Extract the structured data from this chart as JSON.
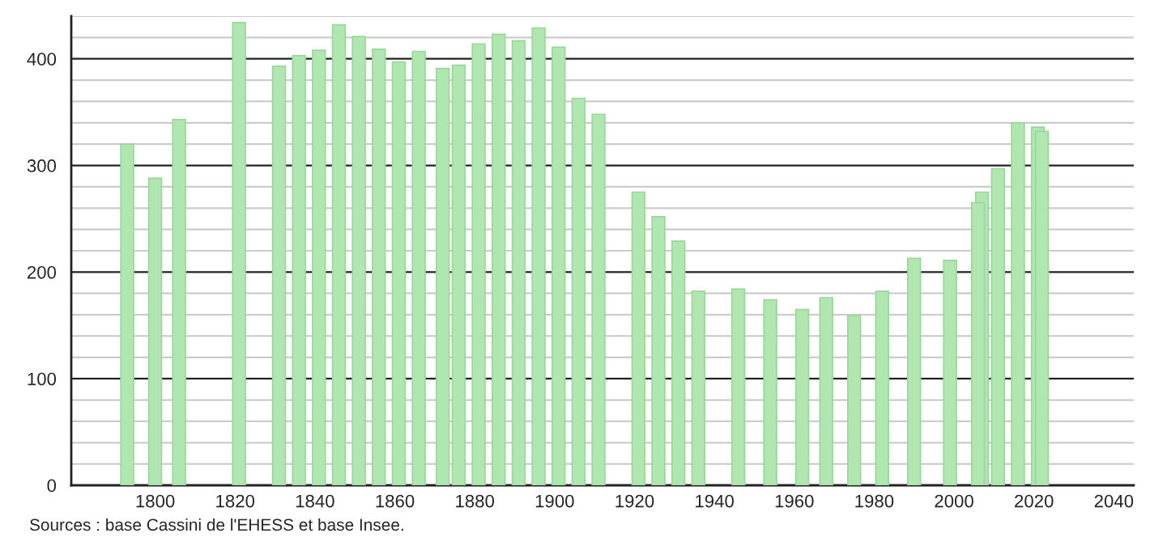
{
  "chart_data": {
    "type": "bar",
    "annotations": [
      "Sources : base Cassini de l'EHESS et base Insee."
    ],
    "x": [
      1793,
      1800,
      1806,
      1821,
      1831,
      1836,
      1841,
      1846,
      1851,
      1856,
      1861,
      1866,
      1872,
      1876,
      1881,
      1886,
      1891,
      1896,
      1901,
      1906,
      1911,
      1921,
      1926,
      1931,
      1936,
      1946,
      1954,
      1962,
      1968,
      1975,
      1982,
      1990,
      1999,
      2006,
      2007,
      2011,
      2016,
      2021,
      2022
    ],
    "values": [
      320,
      288,
      343,
      434,
      393,
      403,
      408,
      432,
      421,
      409,
      397,
      407,
      391,
      394,
      414,
      423,
      417,
      429,
      411,
      363,
      348,
      275,
      252,
      229,
      182,
      184,
      174,
      165,
      176,
      159,
      182,
      213,
      211,
      265,
      275,
      297,
      340,
      336,
      332
    ],
    "color": "#b0e6b0",
    "xlim": [
      1779,
      2045
    ],
    "xticks": [
      1800,
      1820,
      1840,
      1860,
      1880,
      1900,
      1920,
      1940,
      1960,
      1980,
      2000,
      2020,
      2040
    ],
    "ylim": [
      0,
      440
    ],
    "yticks": [
      0,
      {
        "value": 20,
        "label": null
      },
      {
        "value": 40,
        "label": null
      },
      {
        "value": 60,
        "label": null
      },
      {
        "value": 80,
        "label": null
      },
      100,
      {
        "value": 120,
        "label": null
      },
      {
        "value": 140,
        "label": null
      },
      {
        "value": 160,
        "label": null
      },
      {
        "value": 180,
        "label": null
      },
      200,
      {
        "value": 220,
        "label": null
      },
      {
        "value": 240,
        "label": null
      },
      {
        "value": 260,
        "label": null
      },
      {
        "value": 280,
        "label": null
      },
      300,
      {
        "value": 320,
        "label": null
      },
      {
        "value": 340,
        "label": null
      },
      {
        "value": 360,
        "label": null
      },
      {
        "value": 380,
        "label": null
      },
      400,
      {
        "value": 420,
        "label": null
      },
      {
        "value": 440,
        "label": null
      }
    ],
    "grid": "y"
  }
}
